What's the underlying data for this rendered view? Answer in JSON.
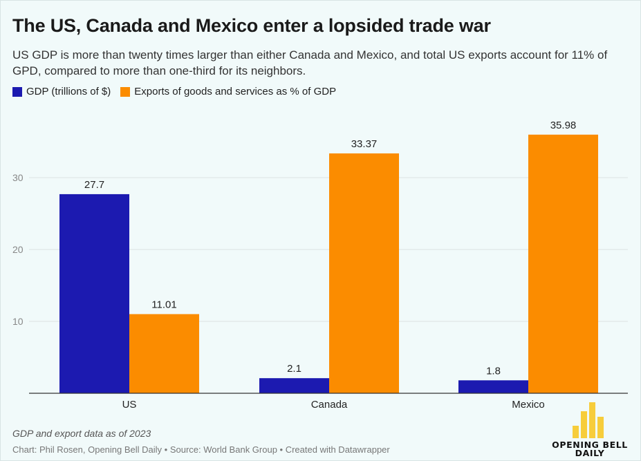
{
  "header": {
    "title": "The US, Canada and Mexico enter a lopsided trade war",
    "subtitle": "US GDP is more than twenty times larger than either Canada and Mexico, and total US exports account for 11% of GPD, compared to more than one-third for its neighbors."
  },
  "chart_data": {
    "type": "bar",
    "categories": [
      "US",
      "Canada",
      "Mexico"
    ],
    "series": [
      {
        "name": "GDP (trillions of $)",
        "values": [
          27.7,
          2.1,
          1.8
        ],
        "color": "#1c1ab0",
        "labels": [
          "27.7",
          "2.1",
          "1.8"
        ]
      },
      {
        "name": "Exports of goods and services as % of GDP",
        "values": [
          11.01,
          33.37,
          35.98
        ],
        "color": "#fb8c00",
        "labels": [
          "11.01",
          "33.37",
          "35.98"
        ]
      }
    ],
    "y_ticks": [
      10,
      20,
      30
    ],
    "ylim": [
      0,
      38
    ],
    "grid": true,
    "legend_position": "top-left"
  },
  "footer": {
    "note": "GDP and export data as of 2023",
    "credit": "Chart: Phil Rosen, Opening Bell Daily • Source: World Bank Group • Created with Datawrapper"
  },
  "logo": {
    "line1": "OPENING BELL",
    "line2": "DAILY",
    "color": "#f7cd3b",
    "bar_levels": [
      0.35,
      0.75,
      1.0,
      0.6
    ]
  }
}
